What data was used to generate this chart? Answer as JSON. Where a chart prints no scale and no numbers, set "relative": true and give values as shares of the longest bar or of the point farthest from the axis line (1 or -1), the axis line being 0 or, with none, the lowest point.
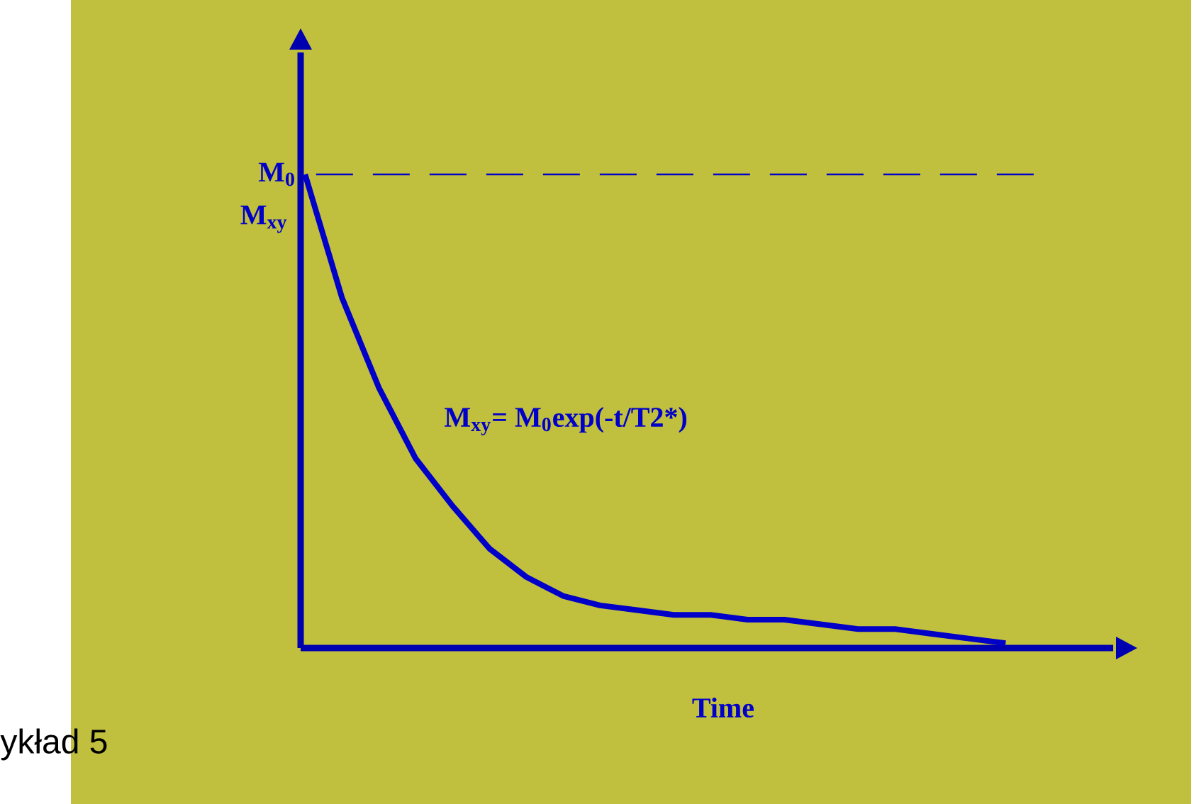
{
  "chart_data": {
    "type": "line",
    "relative": true,
    "xlabel": "Time",
    "ylabel": "M$_{xy}$",
    "categories": [
      null,
      null,
      null,
      null,
      null,
      null,
      null,
      null,
      null,
      null,
      null,
      null,
      null,
      null,
      null,
      null,
      null,
      null,
      null,
      null
    ],
    "series": [
      {
        "color": "#0000c8",
        "values": [
          1.0,
          0.74,
          0.55,
          0.4,
          0.3,
          0.21,
          0.15,
          0.11,
          0.09,
          0.08,
          0.07,
          0.07,
          0.06,
          0.06,
          0.05,
          0.04,
          0.04,
          0.03,
          0.02,
          0.01
        ]
      }
    ],
    "ref_lines": [
      {
        "axis": "y",
        "value": 1,
        "label": "M$_{0}$",
        "color": "#0000c8",
        "line_style": "dashed"
      }
    ],
    "annotations": [
      "M$_{xy}$= M$_{0}$exp(-t/T2*)",
      "ykład 5"
    ]
  }
}
